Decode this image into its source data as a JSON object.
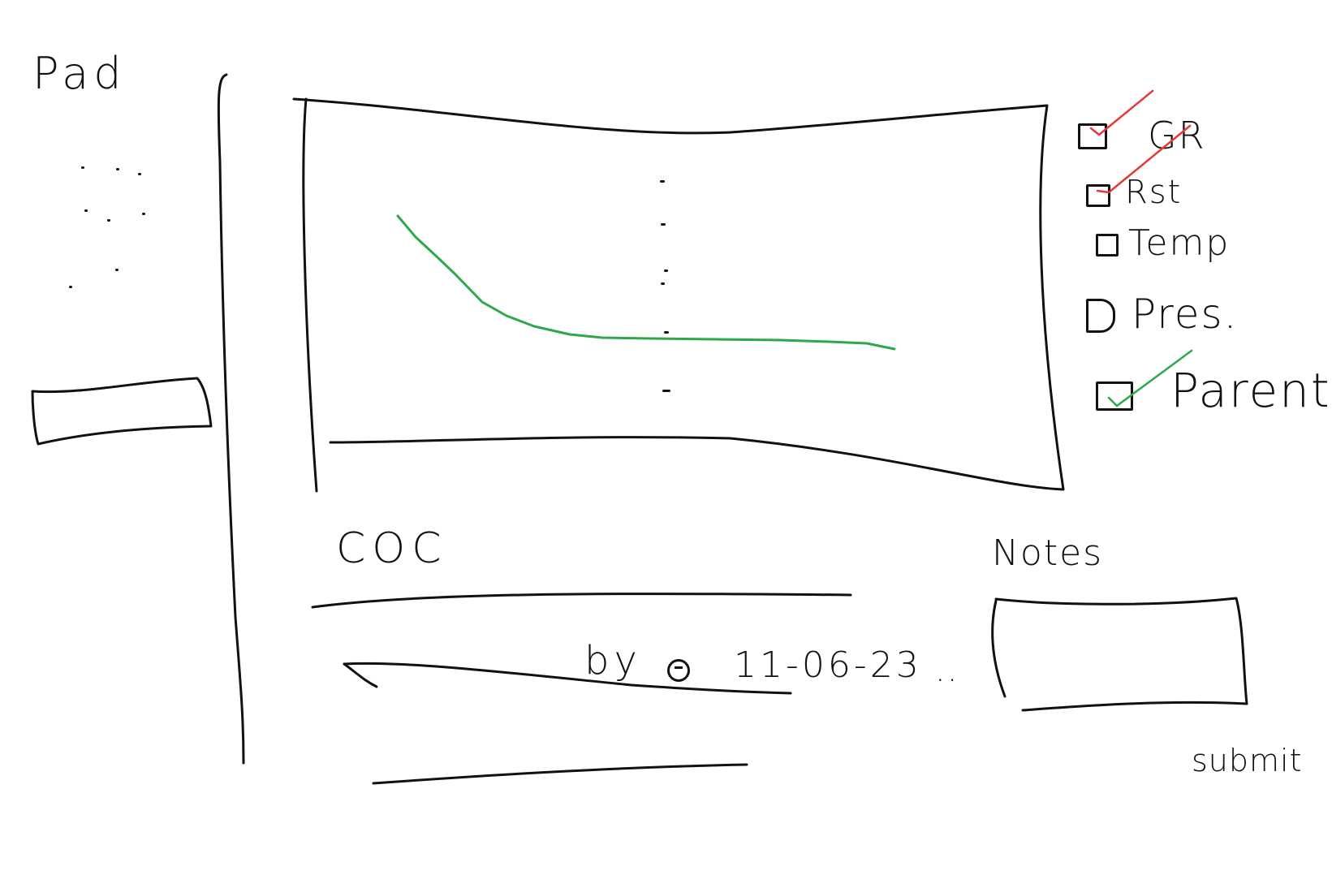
{
  "app": {
    "title": "Pad"
  },
  "legend": {
    "items": [
      {
        "label": "GR",
        "checked": true,
        "check_color": "#e53935"
      },
      {
        "label": "Rst",
        "checked": true,
        "check_color": "#e53935"
      },
      {
        "label": "Temp",
        "checked": false,
        "check_color": ""
      },
      {
        "label": "Pres.",
        "checked": false,
        "check_color": ""
      },
      {
        "label": "Parent",
        "checked": true,
        "check_color": "#2ea84a"
      }
    ]
  },
  "coc": {
    "title": "COC",
    "entry": {
      "by_label": "by",
      "date": "11-06-23",
      "ellipsis": ".."
    }
  },
  "notes": {
    "title": "Notes",
    "value": ""
  },
  "submit": {
    "label": "submit"
  },
  "colors": {
    "series_line": "#2ea84a",
    "ink": "#111111",
    "red_check": "#e53935",
    "green_check": "#2ea84a"
  }
}
